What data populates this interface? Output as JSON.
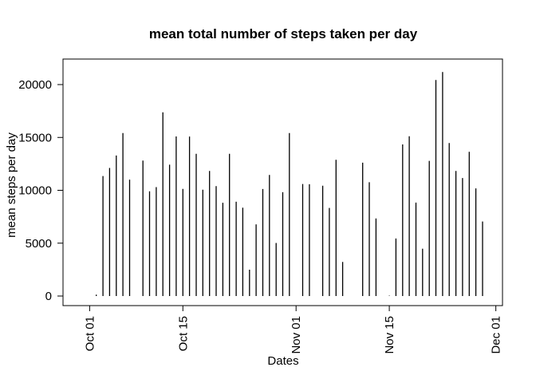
{
  "chart_data": {
    "type": "bar",
    "title": "mean total number of steps taken per day",
    "xlabel": "Dates",
    "ylabel": "mean steps per day",
    "x_tick_labels": [
      "Oct 01",
      "Oct 15",
      "Nov 01",
      "Nov 15",
      "Dec 01"
    ],
    "x_tick_dates": [
      "2012-10-01",
      "2012-10-15",
      "2012-11-01",
      "2012-11-15",
      "2012-12-01"
    ],
    "y_tick_labels": [
      "0",
      "5000",
      "10000",
      "15000",
      "20000"
    ],
    "y_ticks": [
      0,
      5000,
      10000,
      15000,
      20000
    ],
    "xlim": [
      "2012-09-30",
      "2012-12-01"
    ],
    "ylim": [
      0,
      22000
    ],
    "grid": false,
    "bar_style": "vertical lines (histogram-type)",
    "color": "#000000",
    "x": [
      "2012-10-02",
      "2012-10-03",
      "2012-10-04",
      "2012-10-05",
      "2012-10-06",
      "2012-10-07",
      "2012-10-09",
      "2012-10-10",
      "2012-10-11",
      "2012-10-12",
      "2012-10-13",
      "2012-10-14",
      "2012-10-15",
      "2012-10-16",
      "2012-10-17",
      "2012-10-18",
      "2012-10-19",
      "2012-10-20",
      "2012-10-21",
      "2012-10-22",
      "2012-10-23",
      "2012-10-24",
      "2012-10-25",
      "2012-10-26",
      "2012-10-27",
      "2012-10-28",
      "2012-10-29",
      "2012-10-30",
      "2012-10-31",
      "2012-11-02",
      "2012-11-03",
      "2012-11-05",
      "2012-11-06",
      "2012-11-07",
      "2012-11-08",
      "2012-11-11",
      "2012-11-12",
      "2012-11-13",
      "2012-11-15",
      "2012-11-16",
      "2012-11-17",
      "2012-11-18",
      "2012-11-19",
      "2012-11-20",
      "2012-11-21",
      "2012-11-22",
      "2012-11-23",
      "2012-11-24",
      "2012-11-25",
      "2012-11-26",
      "2012-11-27",
      "2012-11-28",
      "2012-11-29"
    ],
    "values": [
      126,
      11352,
      12116,
      13294,
      15420,
      11015,
      12811,
      9900,
      10304,
      17382,
      12426,
      15098,
      10139,
      15084,
      13452,
      10056,
      11829,
      10395,
      8821,
      13460,
      8918,
      8355,
      2492,
      6778,
      10119,
      11458,
      5018,
      9819,
      15414,
      10600,
      10571,
      10439,
      8334,
      12883,
      3219,
      12608,
      10765,
      7336,
      41,
      5441,
      14339,
      15110,
      8841,
      4472,
      12787,
      20427,
      21194,
      14478,
      11834,
      11162,
      13646,
      10183,
      7047
    ]
  }
}
